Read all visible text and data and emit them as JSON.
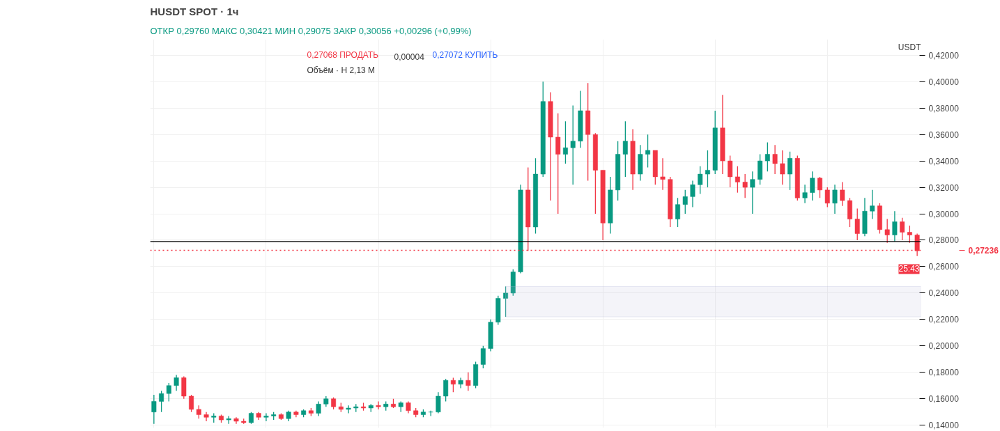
{
  "chart_data": {
    "type": "candlestick",
    "title": "HUSDT SPOT · 1ч",
    "subtitle": "ОТКР 0,29760 МАКС 0,30421 МИН 0,29075 ЗАКР 0,30056 +0,00296 (+0,99%)",
    "annotations": [
      "0,27068 ПРОДАТЬ",
      "0,00004",
      "0,27072 КУПИТЬ",
      "Объём · H 2,13 M",
      "USDT",
      "25:43"
    ],
    "categories": [
      null,
      null,
      null,
      null,
      null,
      null,
      null,
      null,
      null,
      null,
      null,
      null,
      null,
      null,
      null,
      null,
      null,
      null,
      null,
      null,
      null,
      null,
      null,
      null,
      null,
      null,
      null,
      null,
      null,
      null,
      null,
      null,
      null,
      null,
      null,
      null,
      null,
      null,
      null,
      null,
      null,
      null,
      null,
      null,
      null,
      null,
      null,
      null,
      null,
      null,
      null,
      null,
      null,
      null,
      null,
      null,
      null,
      null,
      null,
      null,
      null,
      null,
      null,
      null,
      null,
      null,
      null,
      null,
      null,
      null,
      null,
      null,
      null,
      null,
      null,
      null,
      null,
      null,
      null,
      null,
      null,
      null,
      null,
      null,
      null,
      null,
      null,
      null,
      null,
      null,
      null,
      null,
      null,
      null,
      null,
      null,
      null,
      null,
      null,
      null,
      null,
      null,
      null
    ],
    "ohlc": [
      [
        0.15,
        0.163,
        0.141,
        0.158
      ],
      [
        0.158,
        0.166,
        0.15,
        0.164
      ],
      [
        0.164,
        0.172,
        0.158,
        0.17
      ],
      [
        0.17,
        0.178,
        0.166,
        0.176
      ],
      [
        0.176,
        0.177,
        0.16,
        0.162
      ],
      [
        0.162,
        0.163,
        0.15,
        0.152
      ],
      [
        0.152,
        0.155,
        0.145,
        0.148
      ],
      [
        0.148,
        0.15,
        0.143,
        0.146
      ],
      [
        0.146,
        0.149,
        0.142,
        0.147
      ],
      [
        0.147,
        0.148,
        0.142,
        0.144
      ],
      [
        0.144,
        0.147,
        0.141,
        0.145
      ],
      [
        0.145,
        0.146,
        0.141,
        0.143
      ],
      [
        0.143,
        0.145,
        0.141,
        0.142
      ],
      [
        0.142,
        0.15,
        0.141,
        0.149
      ],
      [
        0.149,
        0.15,
        0.144,
        0.146
      ],
      [
        0.146,
        0.149,
        0.143,
        0.147
      ],
      [
        0.147,
        0.15,
        0.144,
        0.148
      ],
      [
        0.148,
        0.149,
        0.144,
        0.145
      ],
      [
        0.145,
        0.151,
        0.143,
        0.15
      ],
      [
        0.15,
        0.151,
        0.146,
        0.148
      ],
      [
        0.148,
        0.152,
        0.146,
        0.151
      ],
      [
        0.151,
        0.153,
        0.147,
        0.149
      ],
      [
        0.149,
        0.158,
        0.147,
        0.156
      ],
      [
        0.156,
        0.162,
        0.154,
        0.16
      ],
      [
        0.16,
        0.161,
        0.152,
        0.154
      ],
      [
        0.154,
        0.157,
        0.15,
        0.152
      ],
      [
        0.152,
        0.155,
        0.149,
        0.153
      ],
      [
        0.153,
        0.156,
        0.15,
        0.154
      ],
      [
        0.154,
        0.157,
        0.151,
        0.153
      ],
      [
        0.153,
        0.156,
        0.15,
        0.155
      ],
      [
        0.155,
        0.158,
        0.152,
        0.154
      ],
      [
        0.154,
        0.158,
        0.151,
        0.156
      ],
      [
        0.156,
        0.16,
        0.153,
        0.154
      ],
      [
        0.154,
        0.158,
        0.15,
        0.157
      ],
      [
        0.157,
        0.158,
        0.149,
        0.151
      ],
      [
        0.151,
        0.153,
        0.146,
        0.148
      ],
      [
        0.148,
        0.152,
        0.146,
        0.15
      ],
      [
        0.15,
        0.151,
        0.147,
        0.15
      ],
      [
        0.15,
        0.165,
        0.149,
        0.162
      ],
      [
        0.162,
        0.175,
        0.158,
        0.174
      ],
      [
        0.174,
        0.176,
        0.165,
        0.171
      ],
      [
        0.171,
        0.176,
        0.168,
        0.174
      ],
      [
        0.174,
        0.18,
        0.166,
        0.17
      ],
      [
        0.17,
        0.188,
        0.168,
        0.186
      ],
      [
        0.186,
        0.2,
        0.183,
        0.198
      ],
      [
        0.198,
        0.22,
        0.196,
        0.218
      ],
      [
        0.218,
        0.238,
        0.216,
        0.236
      ],
      [
        0.236,
        0.245,
        0.222,
        0.24
      ],
      [
        0.24,
        0.258,
        0.238,
        0.256
      ],
      [
        0.256,
        0.322,
        0.255,
        0.318
      ],
      [
        0.318,
        0.335,
        0.272,
        0.29
      ],
      [
        0.29,
        0.342,
        0.285,
        0.33
      ],
      [
        0.33,
        0.4,
        0.328,
        0.385
      ],
      [
        0.385,
        0.392,
        0.31,
        0.358
      ],
      [
        0.358,
        0.376,
        0.3,
        0.345
      ],
      [
        0.345,
        0.37,
        0.338,
        0.35
      ],
      [
        0.35,
        0.382,
        0.322,
        0.355
      ],
      [
        0.355,
        0.393,
        0.35,
        0.378
      ],
      [
        0.378,
        0.399,
        0.325,
        0.36
      ],
      [
        0.36,
        0.361,
        0.3,
        0.333
      ],
      [
        0.333,
        0.333,
        0.28,
        0.293
      ],
      [
        0.293,
        0.328,
        0.285,
        0.318
      ],
      [
        0.318,
        0.355,
        0.31,
        0.345
      ],
      [
        0.345,
        0.37,
        0.328,
        0.355
      ],
      [
        0.355,
        0.364,
        0.318,
        0.33
      ],
      [
        0.33,
        0.352,
        0.325,
        0.345
      ],
      [
        0.345,
        0.36,
        0.335,
        0.348
      ],
      [
        0.348,
        0.348,
        0.322,
        0.328
      ],
      [
        0.328,
        0.342,
        0.318,
        0.326
      ],
      [
        0.326,
        0.328,
        0.29,
        0.296
      ],
      [
        0.296,
        0.312,
        0.29,
        0.307
      ],
      [
        0.307,
        0.318,
        0.3,
        0.313
      ],
      [
        0.313,
        0.325,
        0.305,
        0.322
      ],
      [
        0.322,
        0.336,
        0.315,
        0.33
      ],
      [
        0.33,
        0.348,
        0.32,
        0.333
      ],
      [
        0.333,
        0.378,
        0.33,
        0.365
      ],
      [
        0.365,
        0.39,
        0.33,
        0.34
      ],
      [
        0.34,
        0.344,
        0.32,
        0.328
      ],
      [
        0.328,
        0.336,
        0.316,
        0.324
      ],
      [
        0.324,
        0.33,
        0.312,
        0.32
      ],
      [
        0.32,
        0.332,
        0.3,
        0.326
      ],
      [
        0.326,
        0.345,
        0.322,
        0.34
      ],
      [
        0.34,
        0.354,
        0.332,
        0.345
      ],
      [
        0.345,
        0.352,
        0.33,
        0.338
      ],
      [
        0.338,
        0.348,
        0.322,
        0.33
      ],
      [
        0.33,
        0.347,
        0.318,
        0.342
      ],
      [
        0.342,
        0.344,
        0.31,
        0.312
      ],
      [
        0.312,
        0.322,
        0.308,
        0.316
      ],
      [
        0.316,
        0.332,
        0.31,
        0.327
      ],
      [
        0.327,
        0.328,
        0.312,
        0.318
      ],
      [
        0.318,
        0.32,
        0.305,
        0.308
      ],
      [
        0.308,
        0.322,
        0.3,
        0.318
      ],
      [
        0.318,
        0.324,
        0.306,
        0.31
      ],
      [
        0.31,
        0.312,
        0.29,
        0.296
      ],
      [
        0.296,
        0.304,
        0.28,
        0.285
      ],
      [
        0.285,
        0.312,
        0.283,
        0.302
      ],
      [
        0.302,
        0.318,
        0.296,
        0.306
      ],
      [
        0.306,
        0.308,
        0.285,
        0.288
      ],
      [
        0.288,
        0.296,
        0.278,
        0.284
      ],
      [
        0.284,
        0.302,
        0.279,
        0.294
      ],
      [
        0.294,
        0.297,
        0.28,
        0.286
      ],
      [
        0.286,
        0.291,
        0.278,
        0.284
      ],
      [
        0.284,
        0.285,
        0.268,
        0.272
      ]
    ],
    "ylim": [
      0.138,
      0.432
    ],
    "yticks": [
      {
        "value": 0.14,
        "label": "0,14000"
      },
      {
        "value": 0.16,
        "label": "0,16000"
      },
      {
        "value": 0.18,
        "label": "0,18000"
      },
      {
        "value": 0.2,
        "label": "0,20000"
      },
      {
        "value": 0.22,
        "label": "0,22000"
      },
      {
        "value": 0.24,
        "label": "0,24000"
      },
      {
        "value": 0.26,
        "label": "0,26000"
      },
      {
        "value": 0.28,
        "label": "0,28000"
      },
      {
        "value": 0.3,
        "label": "0,30000"
      },
      {
        "value": 0.32,
        "label": "0,32000"
      },
      {
        "value": 0.34,
        "label": "0,34000"
      },
      {
        "value": 0.36,
        "label": "0,36000"
      },
      {
        "value": 0.38,
        "label": "0,38000"
      },
      {
        "value": 0.4,
        "label": "0,40000"
      },
      {
        "value": 0.42,
        "label": "0,42000"
      }
    ],
    "ref_lines": [
      {
        "axis": "y",
        "value": 0.279,
        "color": "#000000",
        "line_style": "solid"
      },
      {
        "axis": "y",
        "value": 0.27236,
        "label": "0,27236",
        "color": "#f23645",
        "line_style": "dotted"
      }
    ],
    "bands": [
      {
        "axis": "y",
        "from": 0.222,
        "to": 0.245,
        "color": "#b2b5d6"
      }
    ],
    "grid": true,
    "tick_labels": "y"
  }
}
